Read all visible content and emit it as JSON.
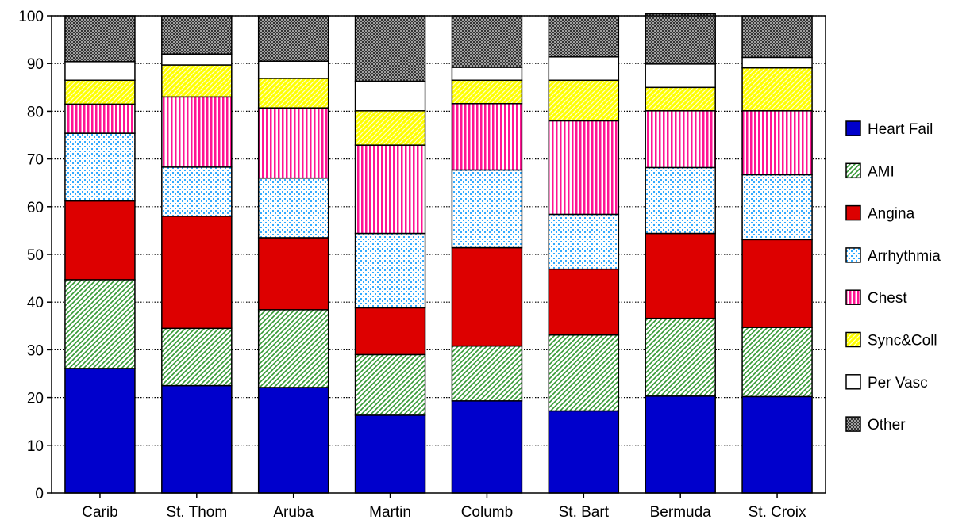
{
  "chart_data": {
    "type": "bar",
    "stacked": true,
    "categories": [
      "Carib",
      "St. Thom",
      "Aruba",
      "Martin",
      "Columb",
      "St. Bart",
      "Bermuda",
      "St. Croix"
    ],
    "ylim": [
      0,
      100
    ],
    "yticks": [
      0,
      10,
      20,
      30,
      40,
      50,
      60,
      70,
      80,
      90,
      100
    ],
    "grid": "horizontal dotted",
    "legend_position": "right",
    "series": [
      {
        "name": "Heart Fail",
        "pattern": "solid",
        "color": "#0000cc",
        "values": [
          26.1,
          22.5,
          22.1,
          16.3,
          19.3,
          17.2,
          20.3,
          20.2
        ]
      },
      {
        "name": "AMI",
        "pattern": "diagonal",
        "color": "#339933",
        "values": [
          18.6,
          12.0,
          16.3,
          12.7,
          11.5,
          15.9,
          16.3,
          14.5
        ]
      },
      {
        "name": "Angina",
        "pattern": "solid",
        "color": "#dd0000",
        "values": [
          16.5,
          23.5,
          15.1,
          9.8,
          20.6,
          13.8,
          17.8,
          18.4
        ]
      },
      {
        "name": "Arrhythmia",
        "pattern": "dots",
        "color": "#33aaff",
        "values": [
          14.2,
          10.3,
          12.5,
          15.6,
          16.3,
          11.5,
          13.8,
          13.6
        ]
      },
      {
        "name": "Chest",
        "pattern": "vertical",
        "color": "#ff1493",
        "values": [
          6.1,
          14.7,
          14.7,
          18.5,
          13.9,
          19.6,
          11.9,
          13.4
        ]
      },
      {
        "name": "Sync&Coll",
        "pattern": "diagonal-fill",
        "color": "#ffff00",
        "values": [
          5.0,
          6.7,
          6.2,
          7.2,
          4.9,
          8.5,
          4.9,
          9.0
        ]
      },
      {
        "name": "Per Vasc",
        "pattern": "solid",
        "color": "#ffffff",
        "values": [
          3.9,
          2.3,
          3.6,
          6.2,
          2.7,
          4.9,
          4.9,
          2.2
        ]
      },
      {
        "name": "Other",
        "pattern": "checker",
        "color": "#808080",
        "values": [
          9.6,
          8.0,
          9.5,
          13.7,
          10.8,
          8.6,
          10.5,
          8.7
        ]
      }
    ]
  }
}
